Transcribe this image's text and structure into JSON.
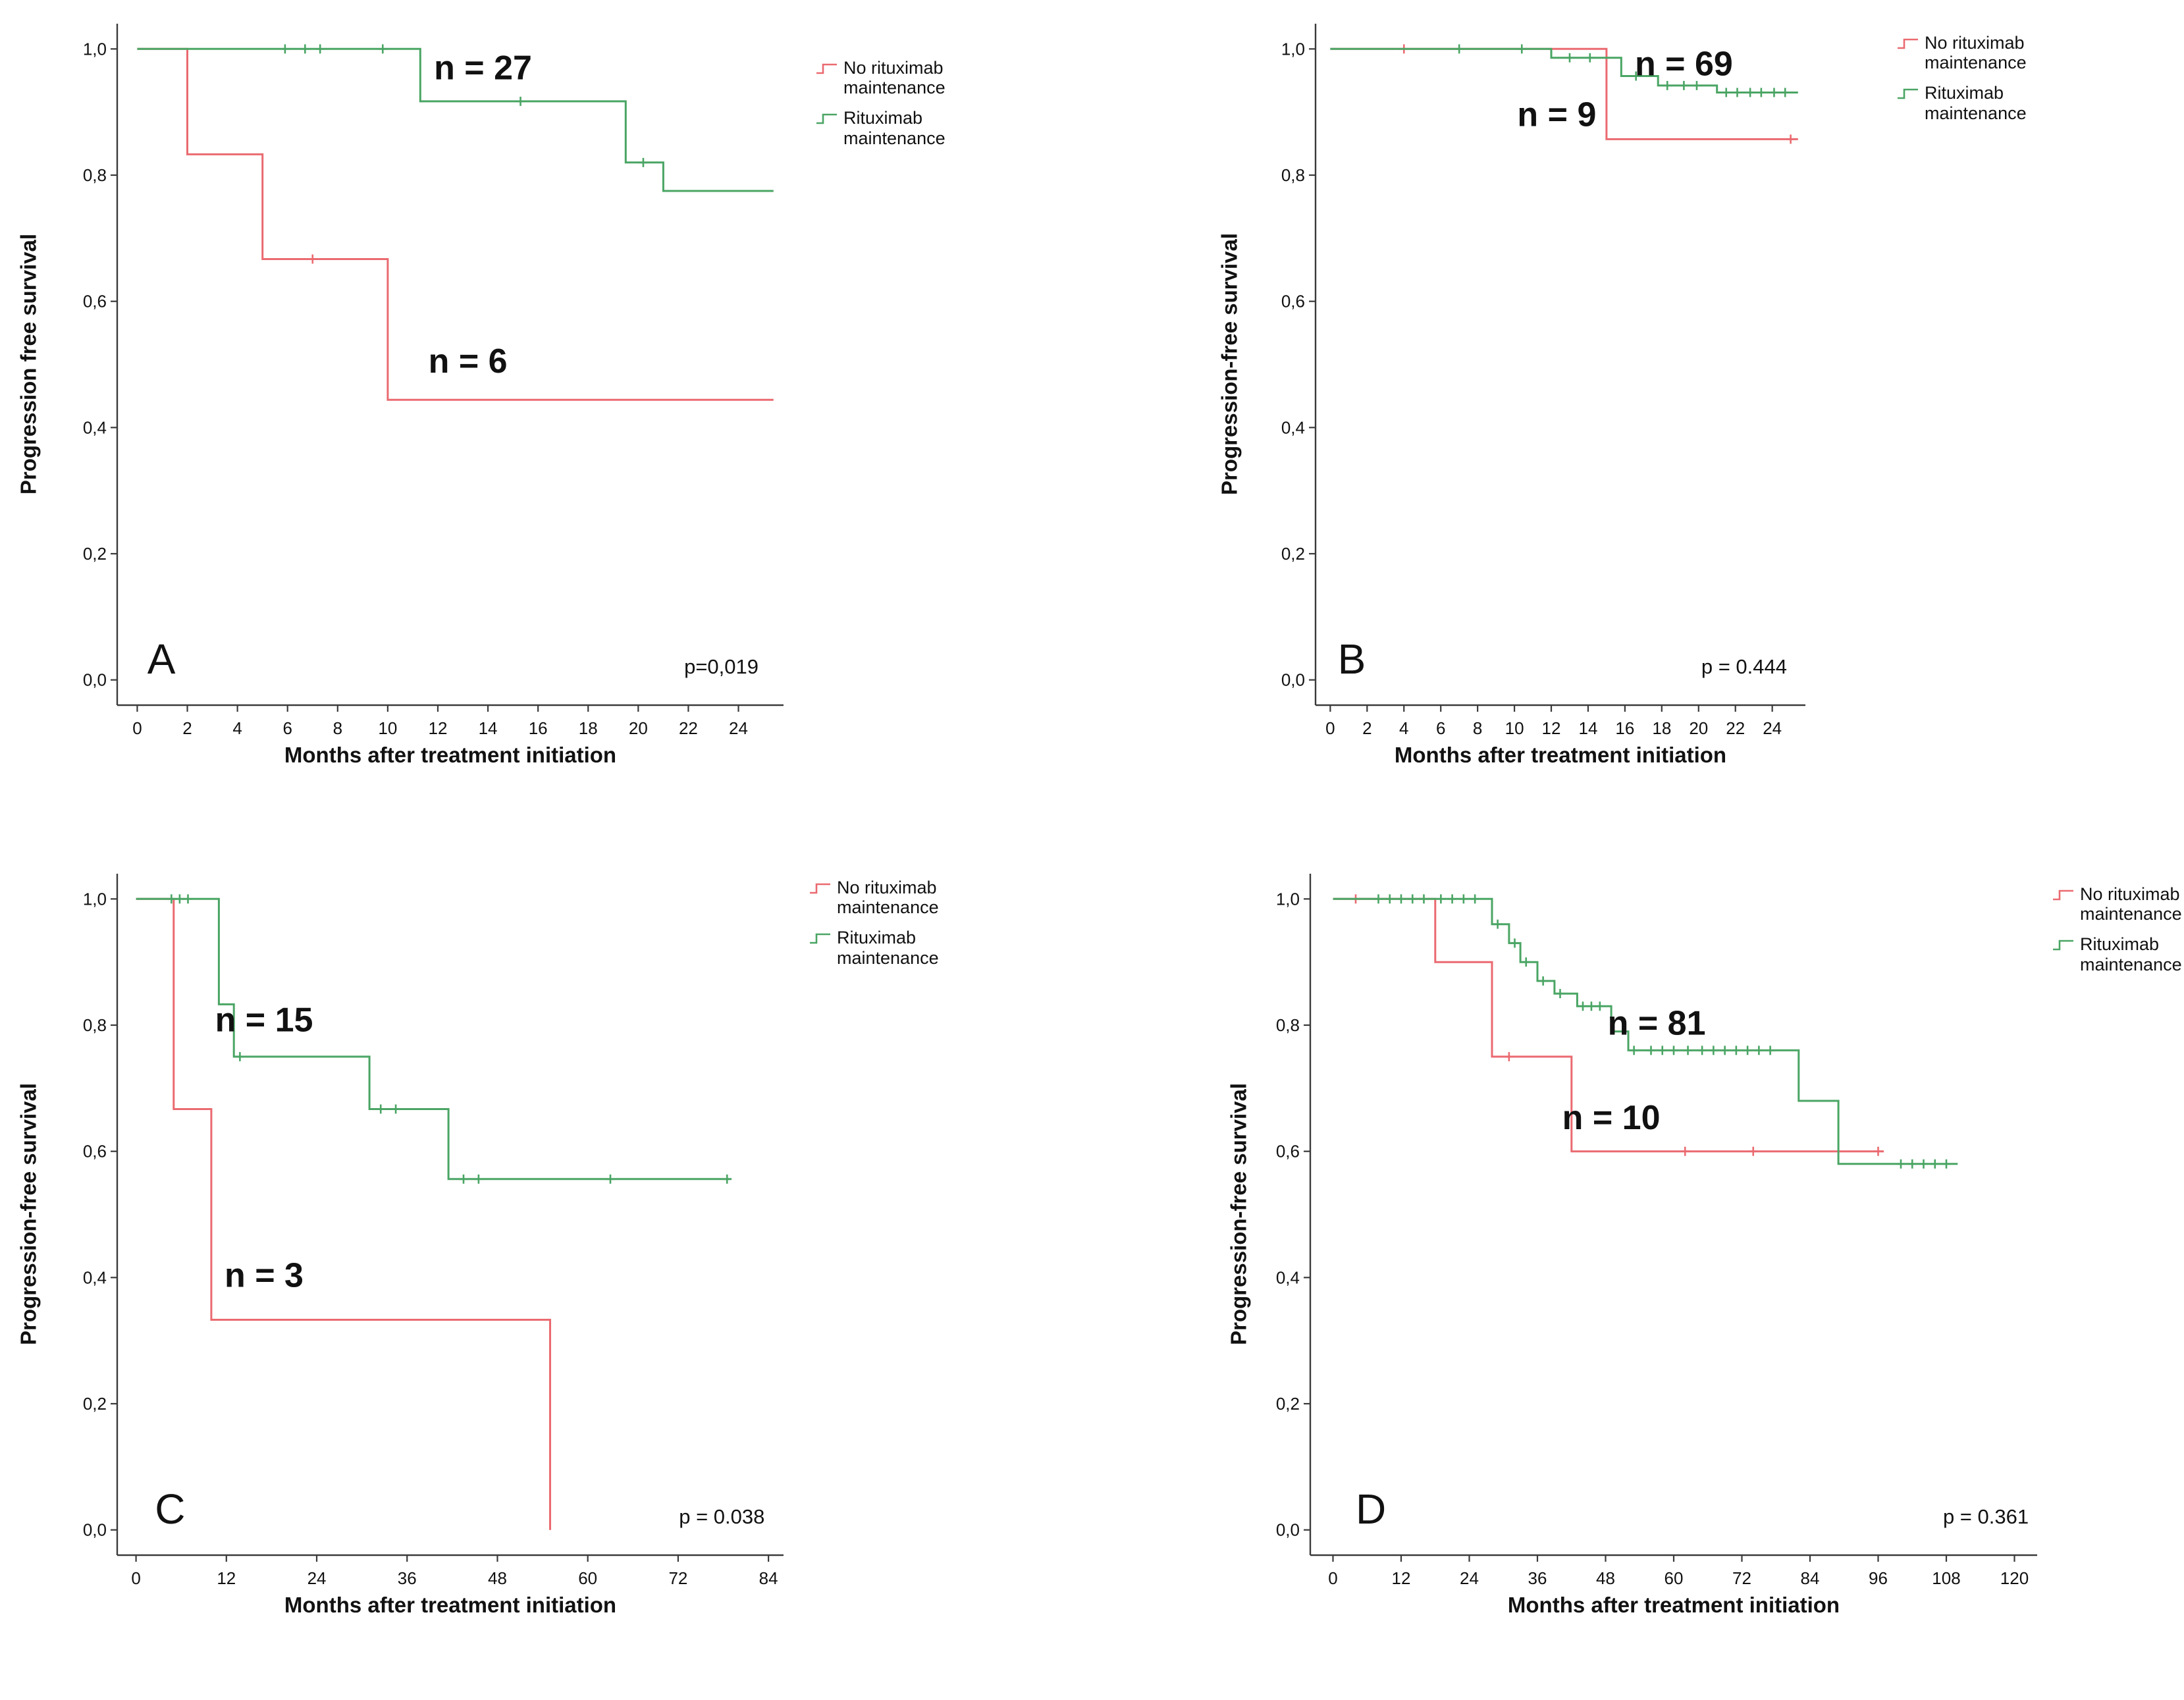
{
  "figure": {
    "background": "#ffffff",
    "panels": [
      "A",
      "B",
      "C",
      "D"
    ]
  },
  "colors": {
    "no_rituximab_maintenance": "#ea6a70",
    "rituximab_maintenance": "#4aa564",
    "axis": "#3a3a3a",
    "text": "#111111"
  },
  "chart_data": [
    {
      "type": "line",
      "variant": "kaplan_meier_step",
      "panel_label": "A",
      "xlabel": "Months after treatment initiation",
      "ylabel": "Progression free survival",
      "p_value": "p=0,019",
      "grid": false,
      "legend_position": "right-top",
      "xlim": [
        -0.8,
        25.8
      ],
      "ylim": [
        -0.04,
        1.04
      ],
      "x_ticks": [
        0,
        2,
        4,
        6,
        8,
        10,
        12,
        14,
        16,
        18,
        20,
        22,
        24
      ],
      "x_tick_labels": [
        "0",
        "2",
        "4",
        "6",
        "8",
        "10",
        "12",
        "14",
        "16",
        "18",
        "20",
        "22",
        "24"
      ],
      "y_ticks": [
        0,
        0.2,
        0.4,
        0.6,
        0.8,
        1.0
      ],
      "y_tick_labels": [
        "0,0",
        "0,2",
        "0,4",
        "0,6",
        "0,8",
        "1,0"
      ],
      "series": [
        {
          "name": "No rituximab maintenance",
          "n": 6,
          "color": "#ea6a70",
          "steps": [
            [
              0,
              1.0
            ],
            [
              2,
              0.833
            ],
            [
              5,
              0.667
            ],
            [
              10,
              0.444
            ]
          ],
          "end_x": 25.4,
          "censors": [
            [
              7,
              0.667
            ]
          ]
        },
        {
          "name": "Rituximab maintenance",
          "n": 27,
          "color": "#4aa564",
          "steps": [
            [
              0,
              1.0
            ],
            [
              11.3,
              0.917
            ],
            [
              19.5,
              0.82
            ],
            [
              21,
              0.775
            ]
          ],
          "end_x": 25.4,
          "censors": [
            [
              5.9,
              1.0
            ],
            [
              6.7,
              1.0
            ],
            [
              7.3,
              1.0
            ],
            [
              9.8,
              1.0
            ],
            [
              15.3,
              0.917
            ],
            [
              20.2,
              0.82
            ]
          ]
        }
      ],
      "annotations": [
        {
          "text": "n = 27",
          "x": 13.8,
          "y": 0.952,
          "size": 52,
          "weight": "bold",
          "anchor": "middle"
        },
        {
          "text": "n = 6",
          "x": 13.2,
          "y": 0.487,
          "size": 52,
          "weight": "bold",
          "anchor": "middle"
        },
        {
          "text": "A",
          "x": 0.4,
          "y": 0.01,
          "size": 64,
          "weight": "normal",
          "anchor": "start"
        },
        {
          "text": "p=0,019",
          "x": 24.8,
          "y": 0.01,
          "size": 31,
          "weight": "normal",
          "anchor": "end"
        }
      ],
      "legend": [
        {
          "label": "No rituximab\nmaintenance",
          "color": "#ea6a70"
        },
        {
          "label": "Rituximab\nmaintenance",
          "color": "#4aa564"
        }
      ]
    },
    {
      "type": "line",
      "variant": "kaplan_meier_step",
      "panel_label": "B",
      "xlabel": "Months after treatment initiation",
      "ylabel": "Progression-free survival",
      "p_value": "p = 0.444",
      "grid": false,
      "legend_position": "right-top",
      "xlim": [
        -0.8,
        25.8
      ],
      "ylim": [
        -0.04,
        1.04
      ],
      "x_ticks": [
        0,
        2,
        4,
        6,
        8,
        10,
        12,
        14,
        16,
        18,
        20,
        22,
        24
      ],
      "x_tick_labels": [
        "0",
        "2",
        "4",
        "6",
        "8",
        "10",
        "12",
        "14",
        "16",
        "18",
        "20",
        "22",
        "24"
      ],
      "y_ticks": [
        0,
        0.2,
        0.4,
        0.6,
        0.8,
        1.0
      ],
      "y_tick_labels": [
        "0,0",
        "0,2",
        "0,4",
        "0,6",
        "0,8",
        "1,0"
      ],
      "series": [
        {
          "name": "No rituximab maintenance",
          "n": 9,
          "color": "#ea6a70",
          "steps": [
            [
              0,
              1.0
            ],
            [
              15,
              0.857
            ]
          ],
          "end_x": 25.4,
          "censors": [
            [
              4,
              1.0
            ],
            [
              25,
              0.857
            ]
          ]
        },
        {
          "name": "Rituximab maintenance",
          "n": 69,
          "color": "#4aa564",
          "steps": [
            [
              0,
              1.0
            ],
            [
              12,
              0.986
            ],
            [
              15.8,
              0.957
            ],
            [
              17.8,
              0.942
            ],
            [
              21,
              0.931
            ]
          ],
          "end_x": 25.4,
          "censors": [
            [
              7,
              1.0
            ],
            [
              10.4,
              1.0
            ],
            [
              13,
              0.986
            ],
            [
              14.1,
              0.986
            ],
            [
              16.6,
              0.957
            ],
            [
              18.3,
              0.942
            ],
            [
              19.2,
              0.942
            ],
            [
              19.9,
              0.942
            ],
            [
              21.5,
              0.931
            ],
            [
              22.1,
              0.931
            ],
            [
              22.8,
              0.931
            ],
            [
              23.4,
              0.931
            ],
            [
              24.1,
              0.931
            ],
            [
              24.7,
              0.931
            ]
          ]
        }
      ],
      "annotations": [
        {
          "text": "n = 69",
          "x": 19.2,
          "y": 0.958,
          "size": 52,
          "weight": "bold",
          "anchor": "middle"
        },
        {
          "text": "n = 9",
          "x": 12.3,
          "y": 0.878,
          "size": 52,
          "weight": "bold",
          "anchor": "middle"
        },
        {
          "text": "B",
          "x": 0.4,
          "y": 0.01,
          "size": 64,
          "weight": "normal",
          "anchor": "start"
        },
        {
          "text": "p = 0.444",
          "x": 24.8,
          "y": 0.01,
          "size": 31,
          "weight": "normal",
          "anchor": "end"
        }
      ],
      "legend": [
        {
          "label": "No rituximab\nmaintenance",
          "color": "#ea6a70"
        },
        {
          "label": "Rituximab\nmaintenance",
          "color": "#4aa564"
        }
      ]
    },
    {
      "type": "line",
      "variant": "kaplan_meier_step",
      "panel_label": "C",
      "xlabel": "Months after treatment initiation",
      "ylabel": "Progression-free survival",
      "p_value": "p = 0.038",
      "grid": false,
      "legend_position": "right-top",
      "xlim": [
        -2.5,
        86
      ],
      "ylim": [
        -0.04,
        1.04
      ],
      "x_ticks": [
        0,
        12,
        24,
        36,
        48,
        60,
        72,
        84
      ],
      "x_tick_labels": [
        "0",
        "12",
        "24",
        "36",
        "48",
        "60",
        "72",
        "84"
      ],
      "y_ticks": [
        0,
        0.2,
        0.4,
        0.6,
        0.8,
        1.0
      ],
      "y_tick_labels": [
        "0,0",
        "0,2",
        "0,4",
        "0,6",
        "0,8",
        "1,0"
      ],
      "series": [
        {
          "name": "No rituximab maintenance",
          "n": 3,
          "color": "#ea6a70",
          "steps": [
            [
              0,
              1.0
            ],
            [
              5,
              0.667
            ],
            [
              10,
              0.333
            ],
            [
              55,
              0.0
            ]
          ],
          "end_x": 55,
          "censors": []
        },
        {
          "name": "Rituximab maintenance",
          "n": 15,
          "color": "#4aa564",
          "steps": [
            [
              0,
              1.0
            ],
            [
              11,
              0.833
            ],
            [
              13,
              0.75
            ],
            [
              31,
              0.667
            ],
            [
              41.5,
              0.556
            ]
          ],
          "end_x": 79,
          "censors": [
            [
              4.7,
              1.0
            ],
            [
              5.8,
              1.0
            ],
            [
              6.9,
              1.0
            ],
            [
              13.8,
              0.75
            ],
            [
              32.5,
              0.667
            ],
            [
              34.5,
              0.667
            ],
            [
              43.5,
              0.556
            ],
            [
              45.5,
              0.556
            ],
            [
              63,
              0.556
            ],
            [
              78.5,
              0.556
            ]
          ]
        }
      ],
      "annotations": [
        {
          "text": "n = 15",
          "x": 17,
          "y": 0.79,
          "size": 52,
          "weight": "bold",
          "anchor": "middle"
        },
        {
          "text": "n = 3",
          "x": 17,
          "y": 0.385,
          "size": 52,
          "weight": "bold",
          "anchor": "middle"
        },
        {
          "text": "C",
          "x": 2.5,
          "y": 0.01,
          "size": 64,
          "weight": "normal",
          "anchor": "start"
        },
        {
          "text": "p = 0.038",
          "x": 83.5,
          "y": 0.01,
          "size": 31,
          "weight": "normal",
          "anchor": "end"
        }
      ],
      "legend": [
        {
          "label": "No rituximab\nmaintenance",
          "color": "#ea6a70"
        },
        {
          "label": "Rituximab\nmaintenance",
          "color": "#4aa564"
        }
      ]
    },
    {
      "type": "line",
      "variant": "kaplan_meier_step",
      "panel_label": "D",
      "xlabel": "Months after treatment initiation",
      "ylabel": "Progression-free survival",
      "p_value": "p = 0.361",
      "grid": false,
      "legend_position": "right-top",
      "xlim": [
        -4,
        124
      ],
      "ylim": [
        -0.04,
        1.04
      ],
      "x_ticks": [
        0,
        12,
        24,
        36,
        48,
        60,
        72,
        84,
        96,
        108,
        120
      ],
      "x_tick_labels": [
        "0",
        "12",
        "24",
        "36",
        "48",
        "60",
        "72",
        "84",
        "96",
        "108",
        "120"
      ],
      "y_ticks": [
        0,
        0.2,
        0.4,
        0.6,
        0.8,
        1.0
      ],
      "y_tick_labels": [
        "0,0",
        "0,2",
        "0,4",
        "0,6",
        "0,8",
        "1,0"
      ],
      "series": [
        {
          "name": "No rituximab maintenance",
          "n": 10,
          "color": "#ea6a70",
          "steps": [
            [
              0,
              1.0
            ],
            [
              18,
              0.9
            ],
            [
              28,
              0.75
            ],
            [
              42,
              0.6
            ]
          ],
          "end_x": 97,
          "censors": [
            [
              4,
              1.0
            ],
            [
              31,
              0.75
            ],
            [
              62,
              0.6
            ],
            [
              74,
              0.6
            ],
            [
              96,
              0.6
            ]
          ]
        },
        {
          "name": "Rituximab maintenance",
          "n": 81,
          "color": "#4aa564",
          "steps": [
            [
              0,
              1.0
            ],
            [
              28,
              0.96
            ],
            [
              31,
              0.93
            ],
            [
              33,
              0.9
            ],
            [
              36,
              0.87
            ],
            [
              39,
              0.85
            ],
            [
              43,
              0.83
            ],
            [
              49,
              0.79
            ],
            [
              52,
              0.76
            ],
            [
              82,
              0.68
            ],
            [
              89,
              0.58
            ]
          ],
          "end_x": 110,
          "censors": [
            [
              8,
              1.0
            ],
            [
              10,
              1.0
            ],
            [
              12,
              1.0
            ],
            [
              14,
              1.0
            ],
            [
              16,
              1.0
            ],
            [
              19,
              1.0
            ],
            [
              21,
              1.0
            ],
            [
              23,
              1.0
            ],
            [
              25,
              1.0
            ],
            [
              29,
              0.96
            ],
            [
              32,
              0.93
            ],
            [
              34,
              0.9
            ],
            [
              37,
              0.87
            ],
            [
              40,
              0.85
            ],
            [
              44,
              0.83
            ],
            [
              45.5,
              0.83
            ],
            [
              47,
              0.83
            ],
            [
              53,
              0.76
            ],
            [
              56,
              0.76
            ],
            [
              58,
              0.76
            ],
            [
              60,
              0.76
            ],
            [
              62.5,
              0.76
            ],
            [
              65,
              0.76
            ],
            [
              67,
              0.76
            ],
            [
              69,
              0.76
            ],
            [
              71,
              0.76
            ],
            [
              73,
              0.76
            ],
            [
              75,
              0.76
            ],
            [
              77,
              0.76
            ],
            [
              100,
              0.58
            ],
            [
              102,
              0.58
            ],
            [
              104,
              0.58
            ],
            [
              106,
              0.58
            ],
            [
              108,
              0.58
            ]
          ]
        }
      ],
      "annotations": [
        {
          "text": "n = 81",
          "x": 57,
          "y": 0.785,
          "size": 52,
          "weight": "bold",
          "anchor": "middle"
        },
        {
          "text": "n = 10",
          "x": 49,
          "y": 0.635,
          "size": 52,
          "weight": "bold",
          "anchor": "middle"
        },
        {
          "text": "D",
          "x": 4,
          "y": 0.01,
          "size": 64,
          "weight": "normal",
          "anchor": "start"
        },
        {
          "text": "p = 0.361",
          "x": 122.5,
          "y": 0.01,
          "size": 31,
          "weight": "normal",
          "anchor": "end"
        }
      ],
      "legend": [
        {
          "label": "No rituximab\nmaintenance",
          "color": "#ea6a70"
        },
        {
          "label": "Rituximab\nmaintenance",
          "color": "#4aa564"
        }
      ]
    }
  ]
}
